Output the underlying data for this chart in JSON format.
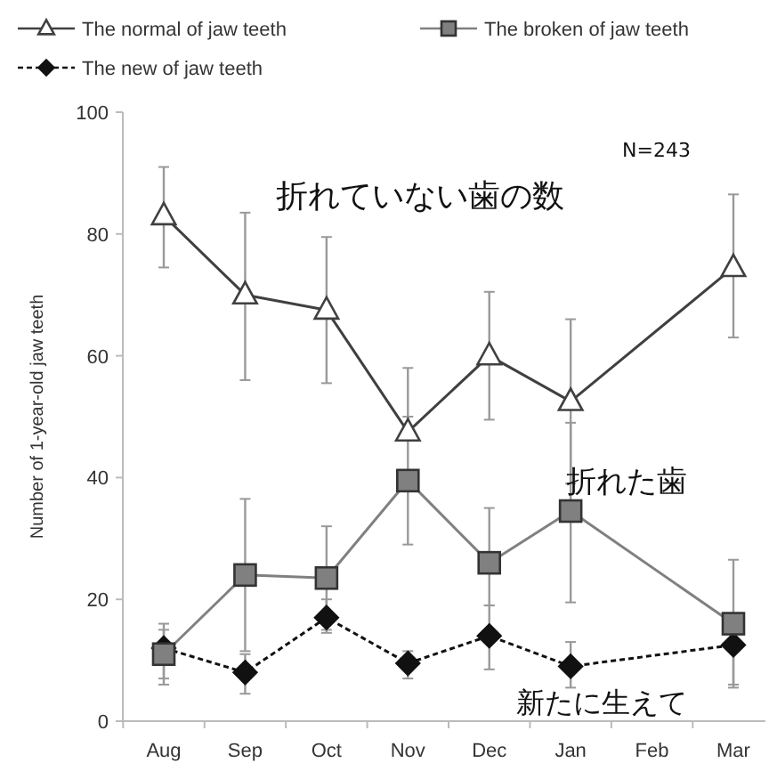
{
  "chart_data": {
    "type": "line",
    "ylabel": "Number of 1-year-old jaw teeth",
    "categories": [
      "Aug",
      "Sep",
      "Oct",
      "Nov",
      "Dec",
      "Jan",
      "Feb",
      "Mar"
    ],
    "ylim": [
      0,
      100
    ],
    "yticks": [
      0,
      20,
      40,
      60,
      80,
      100
    ],
    "legend": "top",
    "grid": false,
    "series": [
      {
        "name": "The normal of jaw teeth",
        "color": "#404040",
        "marker": "triangle",
        "line_style": "solid",
        "values": [
          83,
          70,
          67.5,
          47.5,
          60,
          52.5,
          null,
          74.5
        ],
        "errors": [
          [
            74.5,
            91
          ],
          [
            56,
            83.5
          ],
          [
            55.5,
            79.5
          ],
          [
            47.5,
            58
          ],
          [
            49.5,
            70.5
          ],
          [
            39,
            66
          ],
          null,
          [
            63,
            86.5
          ]
        ]
      },
      {
        "name": "The broken of jaw teeth",
        "color": "#808080",
        "marker": "square",
        "line_style": "solid",
        "values": [
          11,
          24,
          23.5,
          39.5,
          26,
          34.5,
          null,
          16
        ],
        "errors": [
          [
            6,
            16
          ],
          [
            11.5,
            36.5
          ],
          [
            14.5,
            32
          ],
          [
            29,
            50
          ],
          [
            19,
            35
          ],
          [
            19.5,
            49
          ],
          null,
          [
            5.5,
            26.5
          ]
        ]
      },
      {
        "name": "The new of jaw teeth",
        "color": "#111111",
        "marker": "diamond",
        "line_style": "dashed",
        "values": [
          12,
          8,
          17,
          9.5,
          14,
          9,
          null,
          12.5
        ],
        "errors": [
          [
            7,
            15
          ],
          [
            4.5,
            11
          ],
          [
            15,
            20
          ],
          [
            7,
            11.5
          ],
          [
            8.5,
            19
          ],
          [
            5.5,
            13
          ],
          null,
          [
            6,
            17.5
          ]
        ]
      }
    ],
    "annotations": [
      "N=243",
      "折れていない歯の数",
      "折れた歯",
      "新たに生えて"
    ]
  }
}
